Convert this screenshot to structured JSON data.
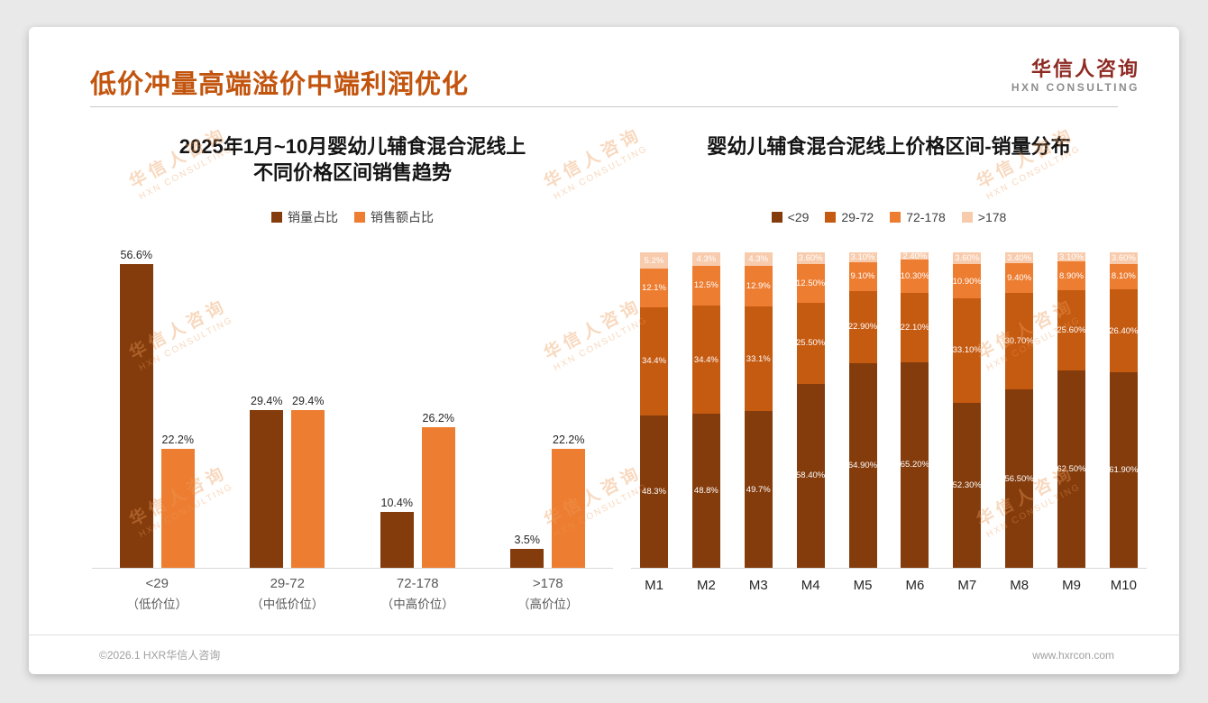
{
  "page": {
    "title": "低价冲量高端溢价中端利润优化",
    "footer_left": "©2026.1 HXR华信人咨询",
    "footer_right": "www.hxrcon.com"
  },
  "logo": {
    "name_cn": "华信人咨询",
    "name_en": "HXN CONSULTING"
  },
  "watermark": {
    "line1": "华信人咨询",
    "line2": "HXN CONSULTING"
  },
  "colors": {
    "title_accent": "#c2540e",
    "dark_brown": "#843C0C",
    "mid_orange": "#C55A11",
    "orange": "#ED7D31",
    "light_orange": "#F8CBAD"
  },
  "chart_data": [
    {
      "type": "bar",
      "title": "2025年1月~10月婴幼儿辅食混合泥线上不同价格区间销售趋势",
      "title_lines": [
        "2025年1月~10月婴幼儿辅食混合泥线上",
        "不同价格区间销售趋势"
      ],
      "categories": [
        "<29",
        "29-72",
        "72-178",
        ">178"
      ],
      "category_sublabels": [
        "（低价位）",
        "（中低价位）",
        "（中高价位）",
        "（高价位）"
      ],
      "series": [
        {
          "name": "销量占比",
          "color": "#843C0C",
          "values": [
            56.6,
            29.4,
            10.4,
            3.5
          ]
        },
        {
          "name": "销售额占比",
          "color": "#ED7D31",
          "values": [
            22.2,
            29.4,
            26.2,
            22.2
          ]
        }
      ],
      "ylim": [
        0,
        60
      ],
      "value_suffix": "%",
      "grid": false,
      "legend_position": "top"
    },
    {
      "type": "bar",
      "subtype": "stacked-100",
      "title": "婴幼儿辅食混合泥线上价格区间-销量分布",
      "categories": [
        "M1",
        "M2",
        "M3",
        "M4",
        "M5",
        "M6",
        "M7",
        "M8",
        "M9",
        "M10"
      ],
      "series": [
        {
          "name": "<29",
          "color": "#843C0C",
          "values": [
            48.3,
            48.8,
            49.7,
            58.4,
            64.9,
            65.2,
            52.3,
            56.5,
            62.5,
            61.9
          ],
          "labels": [
            "48.3%",
            "48.8%",
            "49.7%",
            "58.40%",
            "64.90%",
            "65.20%",
            "52.30%",
            "56.50%",
            "62.50%",
            "61.90%"
          ]
        },
        {
          "name": "29-72",
          "color": "#C55A11",
          "values": [
            34.4,
            34.4,
            33.1,
            25.5,
            22.9,
            22.1,
            33.1,
            30.7,
            25.6,
            26.4
          ],
          "labels": [
            "34.4%",
            "34.4%",
            "33.1%",
            "25.50%",
            "22.90%",
            "22.10%",
            "33.10%",
            "30.70%",
            "25.60%",
            "26.40%"
          ]
        },
        {
          "name": "72-178",
          "color": "#ED7D31",
          "values": [
            12.1,
            12.5,
            12.9,
            12.5,
            9.1,
            10.3,
            10.9,
            9.4,
            8.9,
            8.1
          ],
          "labels": [
            "12.1%",
            "12.5%",
            "12.9%",
            "12.50%",
            "9.10%",
            "10.30%",
            "10.90%",
            "9.40%",
            "8.90%",
            "8.10%"
          ]
        },
        {
          "name": ">178",
          "color": "#F8CBAD",
          "values": [
            5.2,
            4.3,
            4.3,
            3.6,
            3.1,
            2.4,
            3.6,
            3.4,
            3.1,
            3.6
          ],
          "labels": [
            "5.2%",
            "4.3%",
            "4.3%",
            "3.60%",
            "3.10%",
            "2.40%",
            "3.60%",
            "3.40%",
            "3.10%",
            "3.60%"
          ]
        }
      ],
      "ylim": [
        0,
        100
      ],
      "value_suffix": "%",
      "grid": false,
      "legend_position": "top"
    }
  ]
}
